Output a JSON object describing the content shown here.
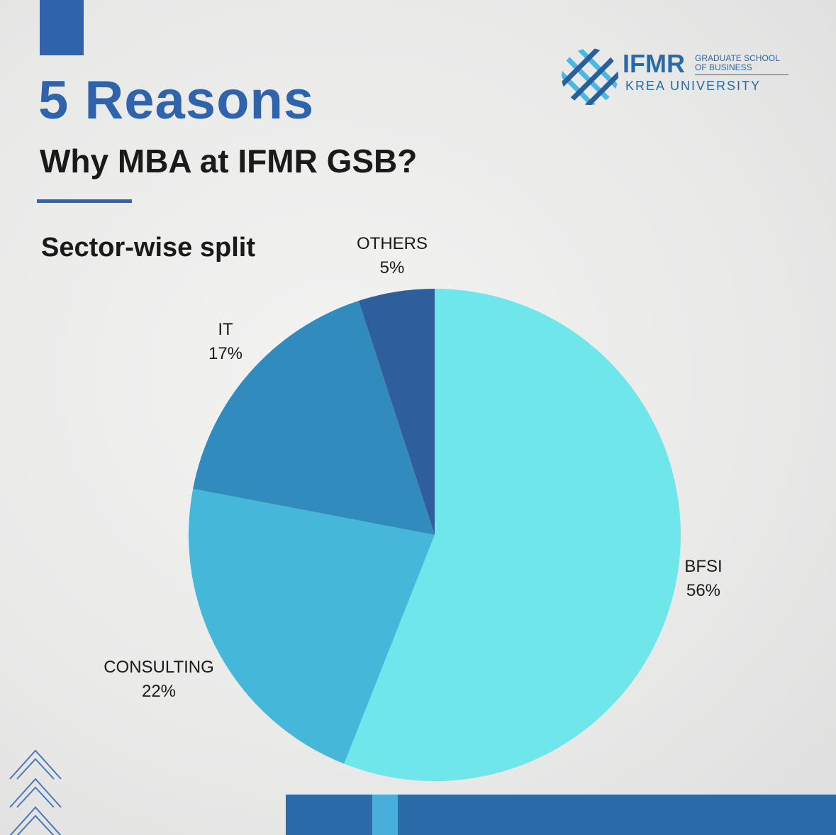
{
  "header": {
    "title": "5 Reasons",
    "subtitle": "Why MBA at IFMR GSB?",
    "section_label": "Sector-wise split"
  },
  "logo": {
    "name": "IFMR",
    "line1": "GRADUATE SCHOOL",
    "line2": "OF BUSINESS",
    "university": "KREA UNIVERSITY"
  },
  "colors": {
    "brand_blue": "#2f64ad",
    "bfsi": "#6ee6ea",
    "consulting": "#45b8da",
    "it": "#318bbd",
    "others": "#2e5f9c"
  },
  "chart_data": {
    "type": "pie",
    "title": "Sector-wise split",
    "slices": [
      {
        "label": "BFSI",
        "value": 56,
        "display": "56%",
        "color": "#6ee6ea"
      },
      {
        "label": "CONSULTING",
        "value": 22,
        "display": "22%",
        "color": "#45b8da"
      },
      {
        "label": "IT",
        "value": 17,
        "display": "17%",
        "color": "#318bbd"
      },
      {
        "label": "OTHERS",
        "value": 5,
        "display": "5%",
        "color": "#2e5f9c"
      }
    ]
  }
}
